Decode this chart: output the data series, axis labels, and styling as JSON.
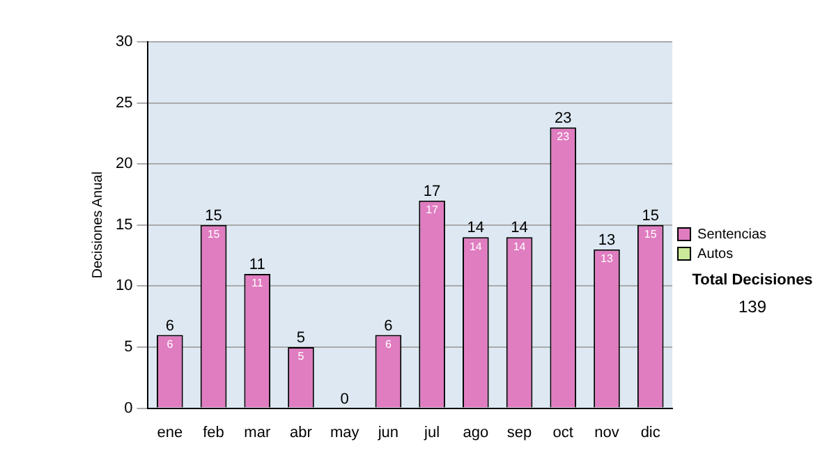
{
  "chart_data": {
    "type": "bar",
    "stacked": true,
    "ylabel": "Decisiones Anual",
    "categories": [
      "ene",
      "feb",
      "mar",
      "abr",
      "may",
      "jun",
      "jul",
      "ago",
      "sep",
      "oct",
      "nov",
      "dic"
    ],
    "series": [
      {
        "name": "Sentencias",
        "color": "#e07cc0",
        "values": [
          6,
          15,
          11,
          5,
          0,
          6,
          17,
          14,
          14,
          23,
          13,
          15
        ],
        "value_labels": [
          "6",
          "15",
          "11",
          "5",
          null,
          "6",
          "17",
          "14",
          "14",
          "23",
          "13",
          "15"
        ]
      },
      {
        "name": "Autos",
        "color": "#cce99a",
        "values": [
          0,
          0,
          0,
          0,
          0,
          0,
          0,
          0,
          0,
          0,
          0,
          0
        ]
      }
    ],
    "totals": [
      "6",
      "15",
      "11",
      "5",
      "0",
      "6",
      "17",
      "14",
      "14",
      "23",
      "13",
      "15"
    ],
    "ylim": [
      0,
      30
    ],
    "yticks": [
      0,
      5,
      10,
      15,
      20,
      25,
      30
    ],
    "grid": "y",
    "legend": "right",
    "annotations": [
      "Total Decisiones",
      "139"
    ]
  }
}
